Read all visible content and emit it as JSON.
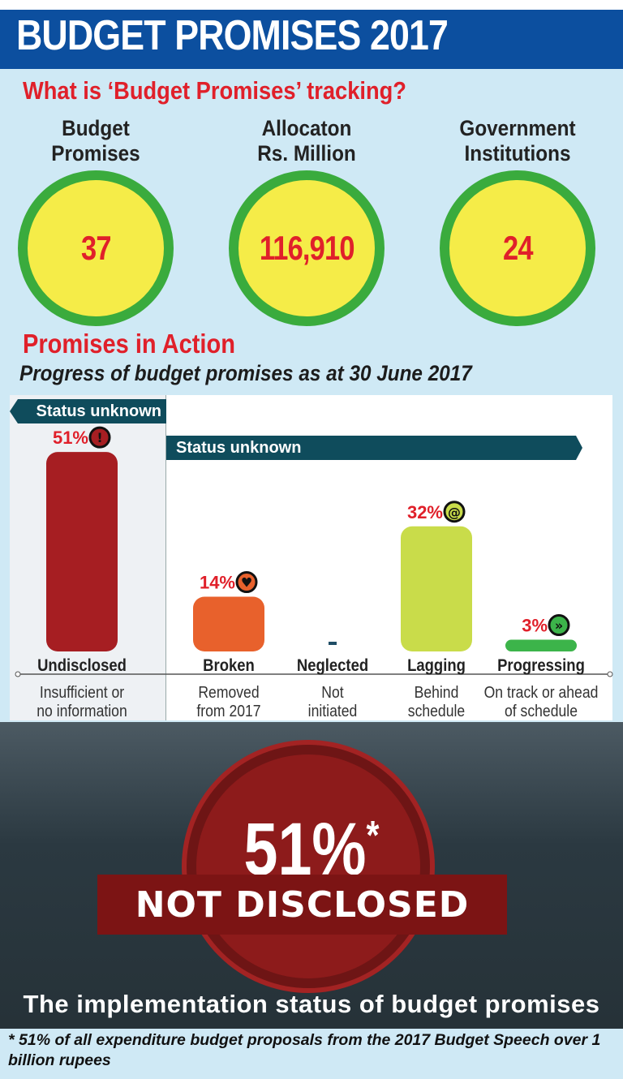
{
  "header": {
    "title": "BUDGET PROMISES 2017"
  },
  "tracking": {
    "heading": "What is ‘Budget Promises’ tracking?",
    "stats": [
      {
        "label_line1": "Budget",
        "label_line2": "Promises",
        "value": "37"
      },
      {
        "label_line1": "Allocaton",
        "label_line2": "Rs. Million",
        "value": "116,910"
      },
      {
        "label_line1": "Government",
        "label_line2": "Institutions",
        "value": "24"
      }
    ],
    "colors": {
      "ring": "#3aab3d",
      "fill": "#f5ec48",
      "number": "#e0202a"
    }
  },
  "action": {
    "heading": "Promises in Action",
    "subheading": "Progress of budget promises as at 30 June 2017"
  },
  "chart_data": {
    "type": "bar",
    "banners": [
      "Status unknown",
      "Status unknown"
    ],
    "categories": [
      "Undisclosed",
      "Broken",
      "Neglected",
      "Lagging",
      "Progressing"
    ],
    "descriptions": [
      [
        "Insufficient or",
        "no information"
      ],
      [
        "Removed",
        "from 2017"
      ],
      [
        "Not",
        "initiated"
      ],
      [
        "Behind",
        "schedule"
      ],
      [
        "On track or ahead",
        "of schedule"
      ]
    ],
    "values": [
      51,
      14,
      0,
      32,
      3
    ],
    "labels": [
      "51%",
      "14%",
      "-",
      "32%",
      "3%"
    ],
    "icons": [
      "exclamation-icon",
      "broken-heart-icon",
      "",
      "snail-icon",
      "fast-forward-icon"
    ],
    "colors": [
      "#a61e22",
      "#e8612c",
      "#1f4d66",
      "#c9dc4a",
      "#3cb44a"
    ],
    "label_color": "#e0202a"
  },
  "highlight": {
    "value": "51%",
    "footnote_mark": "*",
    "label": "NOT DISCLOSED",
    "caption": "The implementation status of budget promises"
  },
  "footnote": "* 51% of all expenditure budget proposals from the 2017 Budget Speech over 1 billion rupees"
}
